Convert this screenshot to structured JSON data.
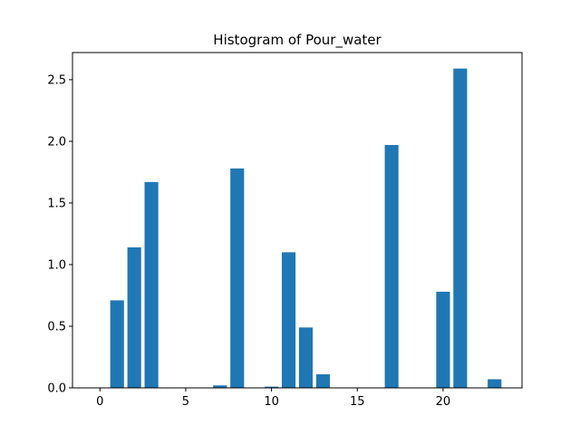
{
  "chart_data": {
    "type": "bar",
    "title": "Histogram of Pour_water",
    "xlabel": "",
    "ylabel": "",
    "x": [
      0,
      1,
      2,
      3,
      4,
      5,
      6,
      7,
      8,
      9,
      10,
      11,
      12,
      13,
      14,
      15,
      16,
      17,
      18,
      19,
      20,
      21,
      22,
      23
    ],
    "values": [
      0,
      0.71,
      1.14,
      1.67,
      0,
      0,
      0,
      0.02,
      1.78,
      0,
      0.01,
      1.1,
      0.49,
      0.11,
      0,
      0,
      0,
      1.97,
      0,
      0,
      0.78,
      2.59,
      0,
      0.07
    ],
    "xlim": [
      -1.6,
      24.6
    ],
    "ylim": [
      0,
      2.72
    ],
    "xticks": [
      0,
      5,
      10,
      15,
      20
    ],
    "yticks": [
      0.0,
      0.5,
      1.0,
      1.5,
      2.0,
      2.5
    ],
    "xtick_labels": [
      "0",
      "5",
      "10",
      "15",
      "20"
    ],
    "ytick_labels": [
      "0.0",
      "0.5",
      "1.0",
      "1.5",
      "2.0",
      "2.5"
    ],
    "bar_width": 0.8,
    "bar_color": "#1f77b4",
    "grid": false,
    "legend": "none"
  }
}
